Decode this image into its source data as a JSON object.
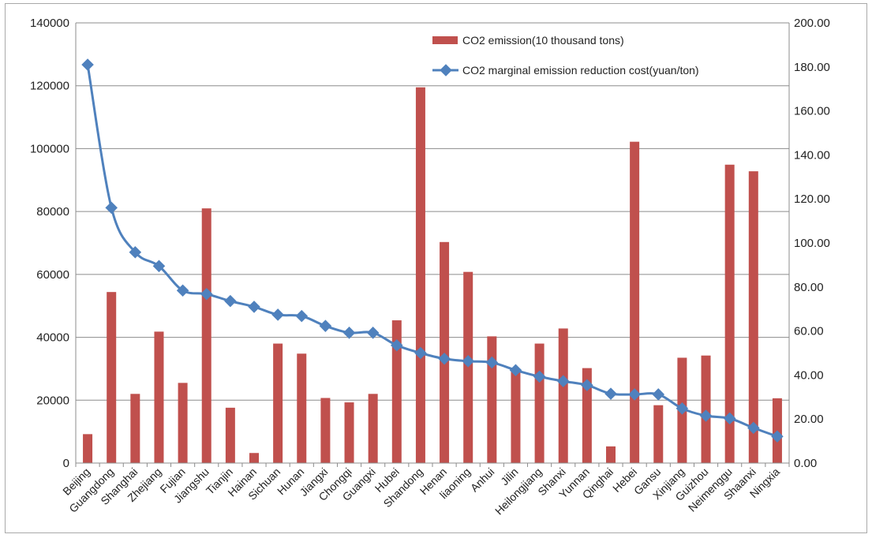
{
  "chart_data": {
    "type": "bar",
    "title": "",
    "xlabel": "",
    "ylabel": "",
    "y2label": "",
    "ylim": [
      0,
      140000
    ],
    "y2lim": [
      0,
      200
    ],
    "y_ticks": [
      "0",
      "20000",
      "40000",
      "60000",
      "80000",
      "100000",
      "120000",
      "140000"
    ],
    "y2_ticks": [
      "0.00",
      "20.00",
      "40.00",
      "60.00",
      "80.00",
      "100.00",
      "120.00",
      "140.00",
      "160.00",
      "180.00",
      "200.00"
    ],
    "grid": "horizontal",
    "legend_position": "top-right",
    "categories": [
      "Beijing",
      "Guangdong",
      "Shanghai",
      "Zhejiang",
      "Fujian",
      "Jiangshu",
      "Tianjin",
      "Hainan",
      "Sichuan",
      "Hunan",
      "Jiangxi",
      "Chongqi",
      "Guangxi",
      "Hubei",
      "Shandong",
      "Henan",
      "liaoning",
      "Anhui",
      "Jilin",
      "Heilongjiang",
      "Shanxi",
      "Yunnan",
      "Qinghai",
      "Hebei",
      "Gansu",
      "Xinjiang",
      "Guizhou",
      "Neimenggu",
      "Shaanxi",
      "Ningxia"
    ],
    "series": [
      {
        "name": "CO2 emission(10 thousand tons)",
        "type": "bar",
        "axis": "left",
        "color": "#c0504d",
        "values": [
          9200,
          54400,
          22000,
          41800,
          25500,
          81000,
          17600,
          3200,
          38000,
          34800,
          20700,
          19300,
          22000,
          45400,
          119500,
          70300,
          60800,
          40300,
          30000,
          38000,
          42800,
          30200,
          5300,
          102200,
          18400,
          33500,
          34200,
          94900,
          92800,
          20600
        ]
      },
      {
        "name": "CO2 marginal emission reduction cost(yuan/ton)",
        "type": "line",
        "axis": "right",
        "color": "#4f81bd",
        "values": [
          181.0,
          116.0,
          95.8,
          89.5,
          78.4,
          76.8,
          73.6,
          71.0,
          67.4,
          66.8,
          62.3,
          59.2,
          59.2,
          53.5,
          50.0,
          47.4,
          46.3,
          45.7,
          42.2,
          39.3,
          37.2,
          35.4,
          31.5,
          31.2,
          31.2,
          24.8,
          21.5,
          20.3,
          16.0,
          12.1
        ]
      }
    ]
  }
}
